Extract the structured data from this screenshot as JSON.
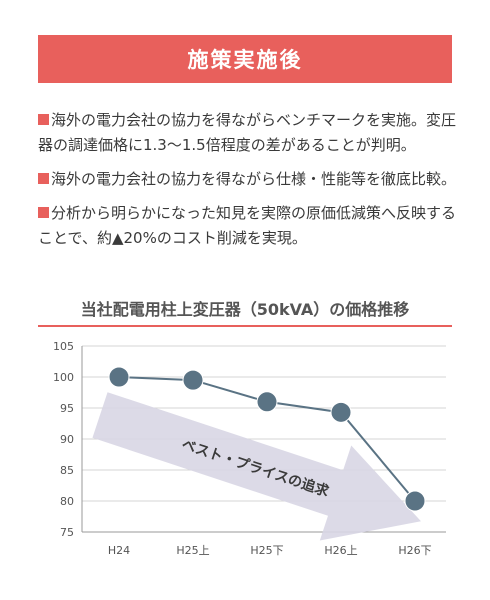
{
  "header": {
    "title": "施策実施後"
  },
  "bullets": [
    "海外の電力会社の協力を得ながらベンチマークを実施。変圧器の調達価格に1.3～1.5倍程度の差があることが判明。",
    "海外の電力会社の協力を得ながら仕様・性能等を徹底比較。",
    "分析から明らかになった知見を実際の原価低減策へ反映することで、約▲20%のコスト削減を実現。"
  ],
  "colors": {
    "accent": "#e8605c",
    "line": "#5a7384",
    "arrow": "#d8d6e4"
  },
  "chart_data": {
    "type": "line",
    "title": "当社配電用柱上変圧器（50kVA）の価格推移",
    "categories": [
      "H24",
      "H25上",
      "H25下",
      "H26上",
      "H26下"
    ],
    "series": [
      {
        "values": [
          100,
          99.5,
          96,
          94.3,
          80
        ]
      }
    ],
    "yticks": [
      75,
      80,
      85,
      90,
      95,
      100,
      105
    ],
    "ylim": [
      75,
      105
    ],
    "grid": true,
    "annotation": "ベスト・プライスの追求"
  }
}
